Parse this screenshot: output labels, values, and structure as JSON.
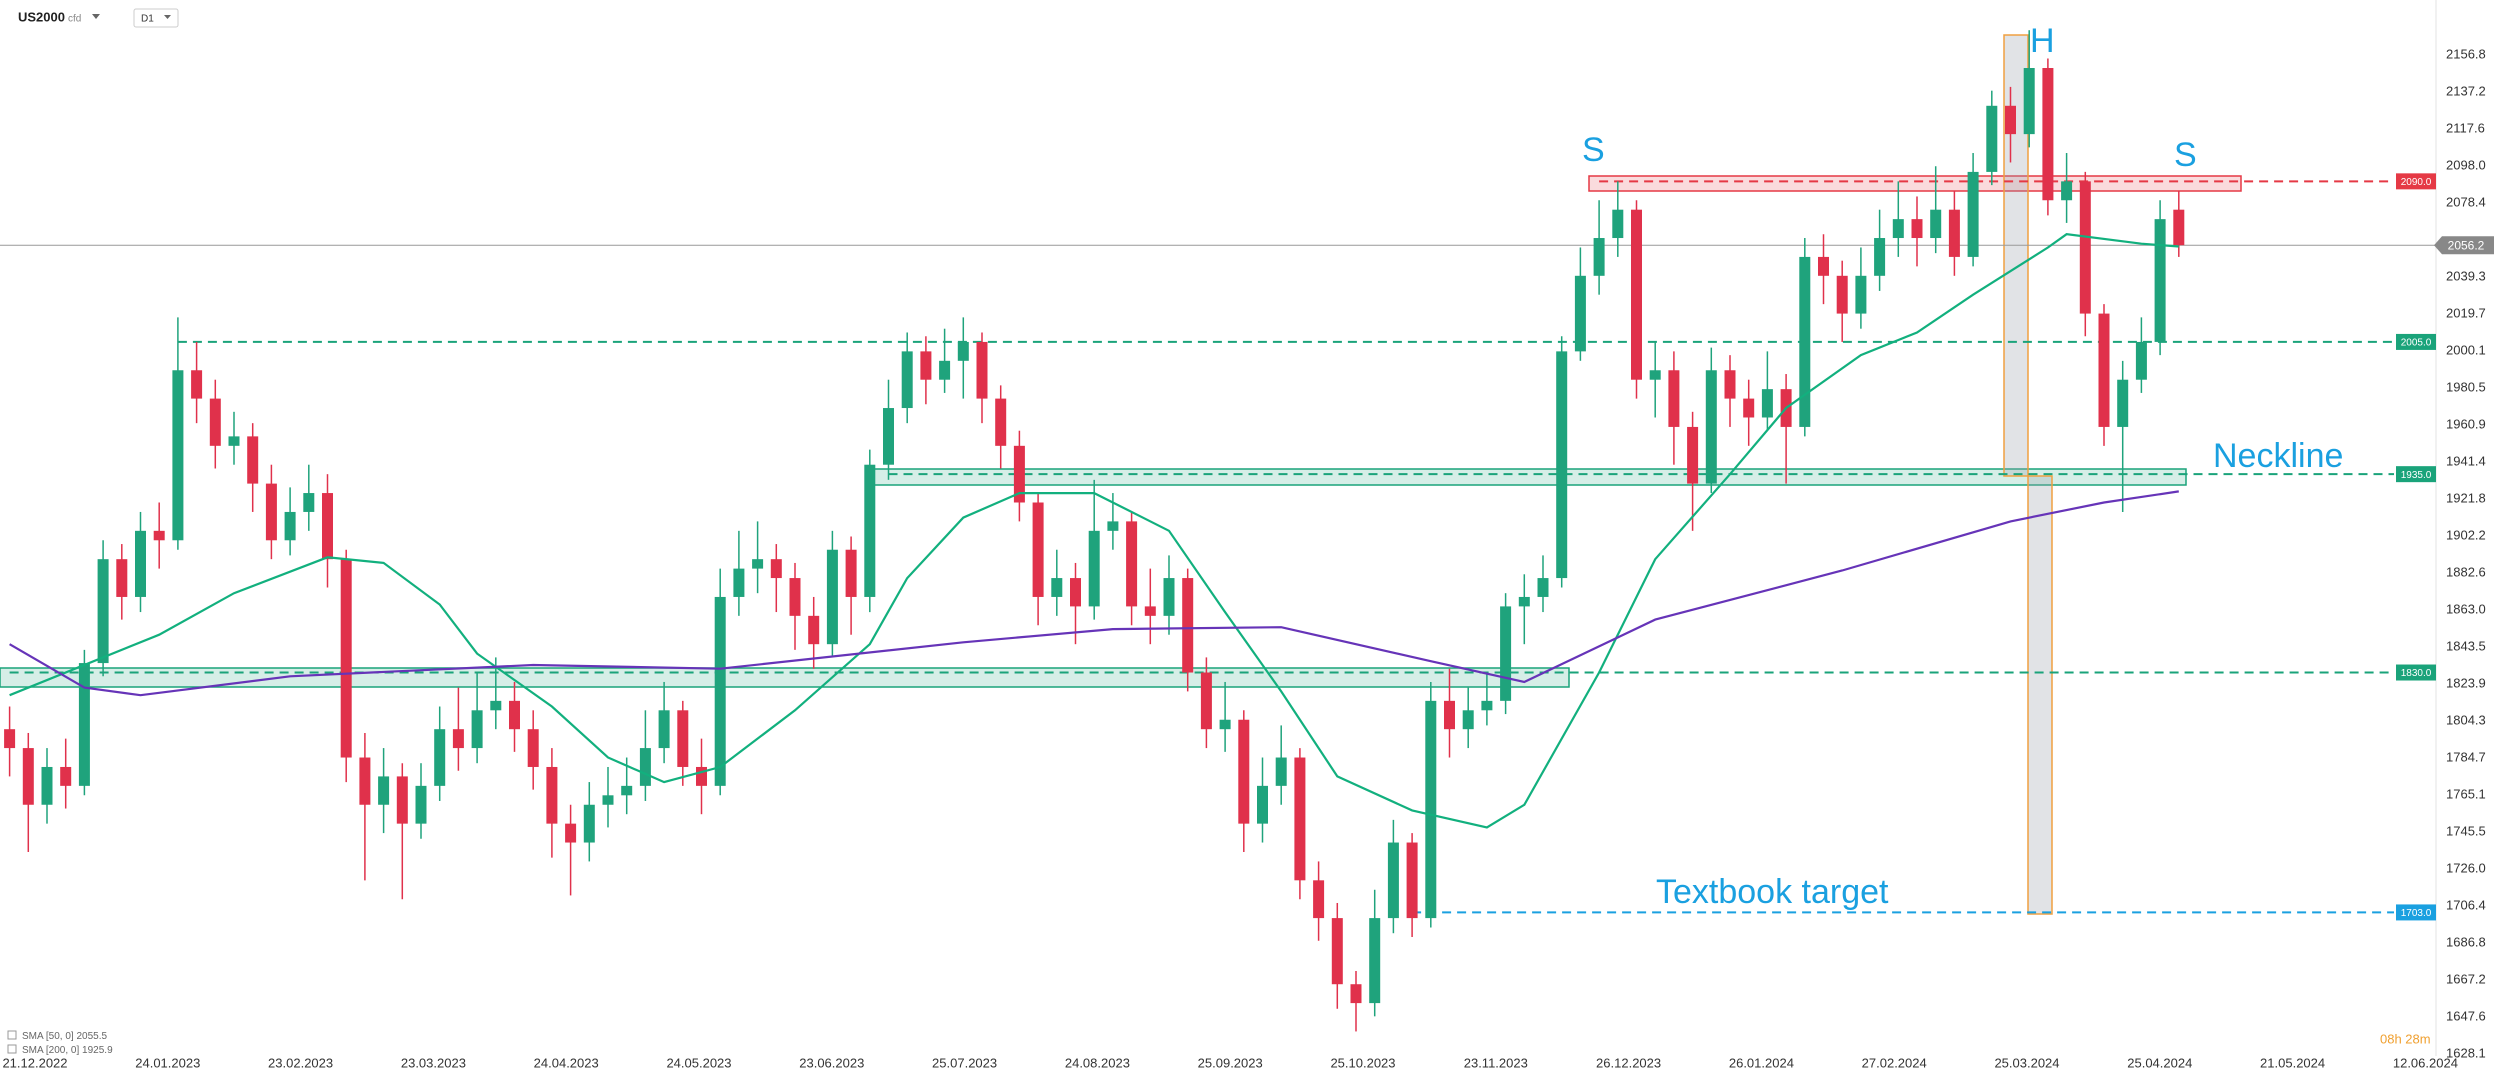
{
  "header": {
    "symbol": "US2000",
    "instrument_type": "cfd",
    "timeframe": "D1"
  },
  "chart_data": {
    "type": "candlestick",
    "up_color": "#1fa37c",
    "down_color": "#e0314b",
    "open": [
      1800,
      1790,
      1760,
      1780,
      1770,
      1835,
      1890,
      1870,
      1905,
      1900,
      1990,
      1975,
      1950,
      1955,
      1930,
      1900,
      1915,
      1925,
      1890,
      1785,
      1760,
      1775,
      1750,
      1770,
      1800,
      1790,
      1810,
      1815,
      1800,
      1780,
      1750,
      1740,
      1760,
      1765,
      1770,
      1790,
      1810,
      1780,
      1770,
      1870,
      1885,
      1890,
      1880,
      1860,
      1845,
      1895,
      1870,
      1940,
      1970,
      2000,
      1985,
      1995,
      2005,
      1975,
      1950,
      1920,
      1870,
      1880,
      1865,
      1905,
      1910,
      1865,
      1860,
      1880,
      1830,
      1800,
      1805,
      1750,
      1770,
      1785,
      1720,
      1700,
      1665,
      1655,
      1700,
      1740,
      1700,
      1815,
      1800,
      1810,
      1815,
      1865,
      1870,
      1880,
      2000,
      2040,
      2060,
      2075,
      1985,
      1990,
      1960,
      1930,
      1990,
      1975,
      1965,
      1980,
      1960,
      2050,
      2040,
      2020,
      2040,
      2060,
      2070,
      2060,
      2075,
      2050,
      2095,
      2130,
      2115,
      2150,
      2080,
      2090,
      2020,
      1960,
      1985,
      2005,
      2075
    ],
    "high": [
      1812,
      1798,
      1790,
      1795,
      1842,
      1900,
      1898,
      1915,
      1920,
      2018,
      2005,
      1985,
      1968,
      1962,
      1940,
      1928,
      1940,
      1935,
      1895,
      1798,
      1790,
      1782,
      1782,
      1812,
      1822,
      1830,
      1838,
      1825,
      1810,
      1790,
      1760,
      1772,
      1780,
      1785,
      1810,
      1825,
      1815,
      1795,
      1885,
      1905,
      1910,
      1898,
      1888,
      1870,
      1905,
      1902,
      1948,
      1985,
      2010,
      2008,
      2012,
      2018,
      2010,
      1982,
      1958,
      1925,
      1895,
      1888,
      1932,
      1925,
      1915,
      1885,
      1892,
      1885,
      1838,
      1825,
      1810,
      1785,
      1802,
      1790,
      1730,
      1708,
      1672,
      1715,
      1752,
      1745,
      1825,
      1832,
      1822,
      1830,
      1872,
      1882,
      1892,
      2008,
      2055,
      2080,
      2090,
      2080,
      2005,
      2000,
      1968,
      2002,
      1998,
      1985,
      2000,
      1988,
      2060,
      2062,
      2048,
      2055,
      2075,
      2090,
      2082,
      2098,
      2085,
      2105,
      2138,
      2140,
      2170,
      2155,
      2105,
      2095,
      2025,
      1995,
      2018,
      2080,
      2085
    ],
    "low": [
      1775,
      1735,
      1750,
      1758,
      1765,
      1828,
      1858,
      1862,
      1885,
      1895,
      1962,
      1938,
      1940,
      1915,
      1890,
      1892,
      1905,
      1875,
      1772,
      1720,
      1745,
      1710,
      1742,
      1762,
      1778,
      1782,
      1800,
      1788,
      1768,
      1732,
      1712,
      1730,
      1748,
      1755,
      1762,
      1782,
      1770,
      1755,
      1765,
      1860,
      1872,
      1862,
      1842,
      1832,
      1838,
      1850,
      1862,
      1932,
      1962,
      1972,
      1978,
      1975,
      1962,
      1938,
      1910,
      1855,
      1860,
      1845,
      1858,
      1895,
      1855,
      1845,
      1850,
      1820,
      1790,
      1788,
      1735,
      1740,
      1760,
      1710,
      1688,
      1652,
      1640,
      1648,
      1692,
      1690,
      1695,
      1785,
      1790,
      1802,
      1808,
      1845,
      1862,
      1875,
      1995,
      2030,
      2050,
      1975,
      1965,
      1940,
      1905,
      1925,
      1960,
      1950,
      1958,
      1930,
      1955,
      2025,
      2005,
      2012,
      2032,
      2050,
      2045,
      2052,
      2040,
      2045,
      2088,
      2100,
      2108,
      2072,
      2068,
      2008,
      1950,
      1915,
      1978,
      1998,
      2050
    ],
    "close": [
      1790,
      1760,
      1780,
      1770,
      1835,
      1890,
      1870,
      1905,
      1900,
      1990,
      1975,
      1950,
      1955,
      1930,
      1900,
      1915,
      1925,
      1890,
      1785,
      1760,
      1775,
      1750,
      1770,
      1800,
      1790,
      1810,
      1815,
      1800,
      1780,
      1750,
      1740,
      1760,
      1765,
      1770,
      1790,
      1810,
      1780,
      1770,
      1870,
      1885,
      1890,
      1880,
      1860,
      1845,
      1895,
      1870,
      1940,
      1970,
      2000,
      1985,
      1995,
      2005,
      1975,
      1950,
      1920,
      1870,
      1880,
      1865,
      1905,
      1910,
      1865,
      1860,
      1880,
      1830,
      1800,
      1805,
      1750,
      1770,
      1785,
      1720,
      1700,
      1665,
      1655,
      1700,
      1740,
      1700,
      1815,
      1800,
      1810,
      1815,
      1865,
      1870,
      1880,
      2000,
      2040,
      2060,
      2075,
      1985,
      1990,
      1960,
      1930,
      1990,
      1975,
      1965,
      1980,
      1960,
      2050,
      2040,
      2020,
      2040,
      2060,
      2070,
      2060,
      2075,
      2050,
      2095,
      2130,
      2115,
      2150,
      2080,
      2090,
      2020,
      1960,
      1985,
      2005,
      2070,
      2056.2
    ],
    "x_labels": [
      "21.12.2022",
      "24.01.2023",
      "23.02.2023",
      "23.03.2023",
      "24.04.2023",
      "24.05.2023",
      "23.06.2023",
      "25.07.2023",
      "24.08.2023",
      "25.09.2023",
      "25.10.2023",
      "23.11.2023",
      "26.12.2023",
      "26.01.2024",
      "27.02.2024",
      "25.03.2024",
      "25.04.2024",
      "21.05.2024",
      "12.06.2024"
    ],
    "ylim": [
      1627,
      2186
    ],
    "yticks": [
      2156.8,
      2137.2,
      2117.6,
      {
        "value": 2098,
        "label": "2098.0"
      },
      2078.4,
      2039.3,
      2019.7,
      2000.1,
      1980.5,
      1960.9,
      1941.4,
      1921.8,
      1902.2,
      1882.6,
      {
        "value": 1863,
        "label": "1863.0"
      },
      1843.5,
      1823.9,
      1804.3,
      1784.7,
      1765.1,
      1745.5,
      {
        "value": 1726,
        "label": "1726.0"
      },
      1706.4,
      1686.8,
      1667.2,
      1647.6,
      1628.1
    ],
    "lines": [
      {
        "name": "SMA [50, 0]",
        "color": "#12b07e",
        "x": [
          0,
          8,
          12,
          17,
          20,
          23,
          25,
          29,
          32,
          35,
          38,
          42,
          46,
          48,
          51,
          54,
          58,
          62,
          65,
          68,
          71,
          75,
          79,
          81,
          85,
          88,
          92,
          95,
          99,
          102,
          105,
          109,
          110,
          114,
          116
        ],
        "values": [
          1818,
          1850,
          1872,
          1891,
          1888,
          1866,
          1840,
          1812,
          1785,
          1772,
          1780,
          1810,
          1845,
          1880,
          1912,
          1925,
          1925,
          1905,
          1862,
          1820,
          1775,
          1757,
          1748,
          1760,
          1830,
          1890,
          1935,
          1970,
          1998,
          2010,
          2030,
          2055,
          2062,
          2057,
          2055.5
        ]
      },
      {
        "name": "SMA [200, 0]",
        "color": "#6634b8",
        "x": [
          0,
          4,
          7,
          15,
          28,
          38,
          51,
          59,
          68,
          76,
          81,
          88,
          98,
          107,
          112,
          116
        ],
        "values": [
          1845,
          1822,
          1818,
          1828,
          1834,
          1832,
          1846,
          1853,
          1854,
          1836,
          1825,
          1858,
          1884,
          1910,
          1920,
          1925.9
        ]
      }
    ],
    "levels": [
      {
        "value": 2090,
        "label": "2090.0",
        "color": "#e53945",
        "from": 85
      },
      {
        "value": 2005,
        "label": "2005.0",
        "color": "#1aa37a",
        "from": 9
      },
      {
        "value": 1935,
        "label": "1935.0",
        "color": "#1aa37a",
        "from": 47
      },
      {
        "value": 1830,
        "label": "1830.0",
        "color": "#1aa37a",
        "from": 0
      },
      {
        "value": 1703,
        "label": "1703.0",
        "color": "#1aa0e0",
        "from": 75
      }
    ],
    "annotations": {
      "left_shoulder": "S",
      "head": "H",
      "right_shoulder": "S",
      "neckline": "Neckline",
      "target": "Textbook target"
    },
    "countdown": "08h 28m"
  }
}
